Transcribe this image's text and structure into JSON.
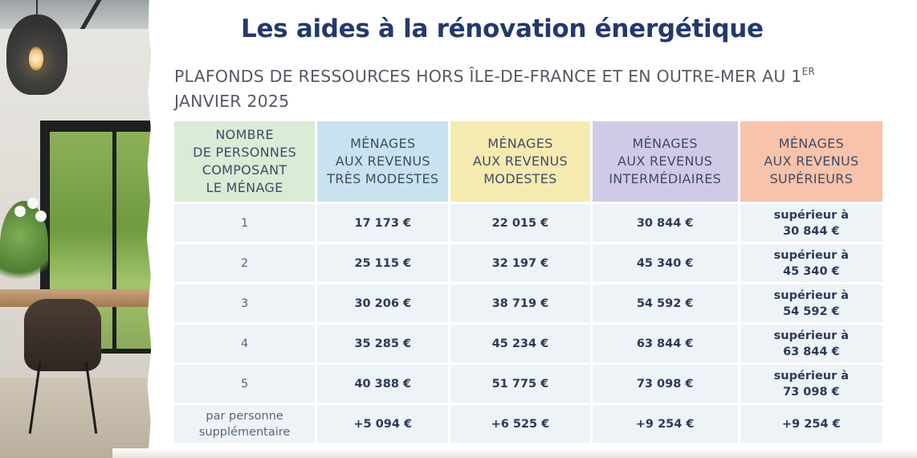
{
  "title": "Les aides à la rénovation énergétique",
  "subtitle": {
    "line1": "PLAFONDS DE RESSOURCES HORS ÎLE-DE-FRANCE ET EN OUTRE-MER AU 1",
    "sup": "ER",
    "line2": "JANVIER 2025"
  },
  "colors": {
    "title": "#23396e",
    "col_household": "#d8ecd6",
    "col_very_modest": "#c9e2f0",
    "col_modest": "#f5ebb0",
    "col_intermediate": "#d1cae6",
    "col_superior": "#f7c3aa",
    "cell_bg": "#eef3f8"
  },
  "table": {
    "headers": [
      "NOMBRE\nDE PERSONNES\nCOMPOSANT\nLE MÉNAGE",
      "MÉNAGES\nAUX REVENUS\nTRÈS MODESTES",
      "MÉNAGES\nAUX REVENUS\nMODESTES",
      "MÉNAGES\nAUX REVENUS\nINTERMÉDIAIRES",
      "MÉNAGES\nAUX REVENUS\nSUPÉRIEURS"
    ],
    "rows": [
      [
        "1",
        "17 173 €",
        "22 015 €",
        "30 844 €",
        "supérieur à\n30 844 €"
      ],
      [
        "2",
        "25 115 €",
        "32 197 €",
        "45 340 €",
        "supérieur à\n45 340 €"
      ],
      [
        "3",
        "30 206 €",
        "38 719 €",
        "54 592 €",
        "supérieur à\n54 592 €"
      ],
      [
        "4",
        "35 285 €",
        "45 234 €",
        "63 844 €",
        "supérieur à\n63 844 €"
      ],
      [
        "5",
        "40 388 €",
        "51 775 €",
        "73 098 €",
        "supérieur à\n73 098 €"
      ],
      [
        "par personne\nsupplémentaire",
        "+5 094 €",
        "+6 525 €",
        "+9 254 €",
        "+9 254 €"
      ]
    ]
  }
}
